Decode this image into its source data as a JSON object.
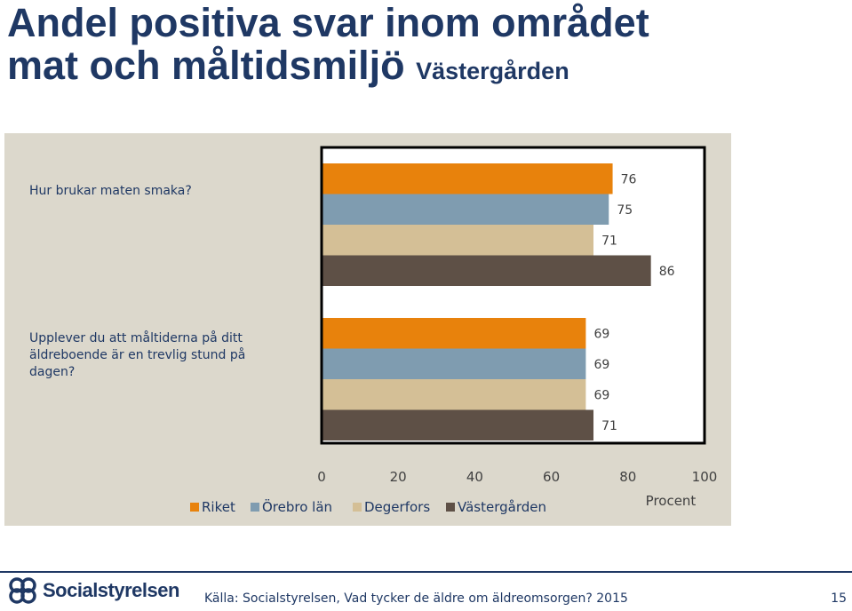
{
  "title": {
    "main_line1": "Andel positiva svar inom området",
    "main_line2": "mat och måltidsmiljö",
    "subtitle": "Västergården"
  },
  "chart_data": {
    "type": "bar",
    "orientation": "horizontal",
    "categories": [
      "Hur brukar maten smaka?",
      "Upplever du att måltiderna på ditt äldreboende är en trevlig stund på dagen?"
    ],
    "category_lines": [
      [
        "Hur brukar maten smaka?"
      ],
      [
        "Upplever du att måltiderna på ditt",
        "äldreboende är en trevlig stund på",
        "dagen?"
      ]
    ],
    "series": [
      {
        "name": "Riket",
        "color": "#e8820c",
        "values": [
          76,
          69
        ]
      },
      {
        "name": "Örebro län",
        "color": "#7f9cb0",
        "values": [
          75,
          69
        ]
      },
      {
        "name": "Degerfors",
        "color": "#d4bf96",
        "values": [
          71,
          69
        ]
      },
      {
        "name": "Västergården",
        "color": "#5e5046",
        "values": [
          86,
          71
        ]
      }
    ],
    "xlim": [
      0,
      100
    ],
    "xticks": [
      "0",
      "20",
      "40",
      "60",
      "80",
      "100"
    ],
    "xlabel": "Procent",
    "grid": false,
    "legend_position": "bottom"
  },
  "footer": {
    "logo_text": "Socialstyrelsen",
    "source": "Källa: Socialstyrelsen, Vad tycker de äldre om äldreomsorgen? 2015",
    "page_number": "15"
  }
}
